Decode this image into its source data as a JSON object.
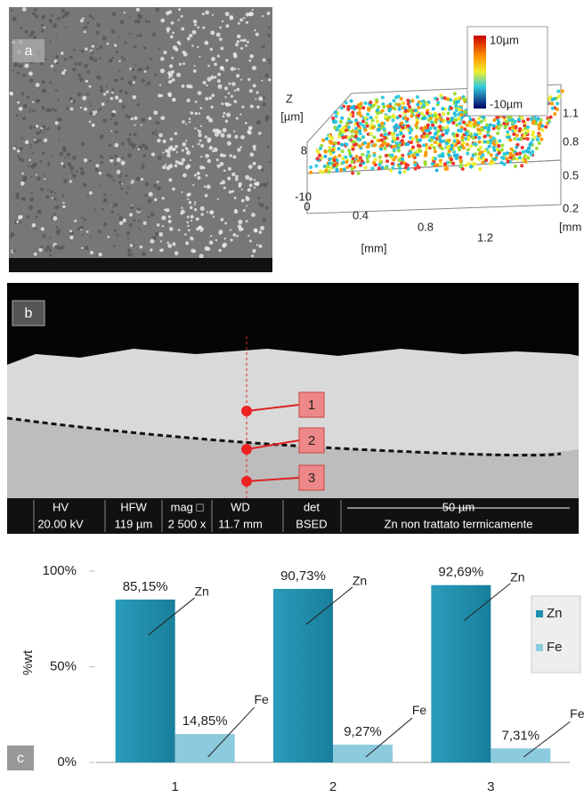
{
  "panel_a": {
    "label": "a",
    "surface": {
      "z_label": "Z",
      "z_unit": "[µm]",
      "z_ticks": [
        "8",
        "-10"
      ],
      "x_ticks": [
        "0",
        "0.4",
        "0.8",
        "1.2"
      ],
      "x_unit": "[mm]",
      "y_ticks": [
        "1.1",
        "0.8",
        "0.5",
        "0.2"
      ],
      "y_unit": "[mm",
      "colorbar": [
        "10µm",
        "-10µm"
      ]
    }
  },
  "panel_b": {
    "label": "b",
    "points": [
      "1",
      "2",
      "3"
    ],
    "info_bar": {
      "headers": [
        "HV",
        "HFW",
        "mag □",
        "WD",
        "det"
      ],
      "values": [
        "20.00 kV",
        "119 µm",
        "2 500 x",
        "11.7 mm",
        "BSED"
      ],
      "scale": "50 µm",
      "sample": "Zn non trattato termicamente"
    }
  },
  "panel_c": {
    "label": "c"
  },
  "chart_data": {
    "type": "bar",
    "y_label": "%wt",
    "categories": [
      "1",
      "2",
      "3"
    ],
    "series": [
      {
        "name": "Zn",
        "color": "#1f8fae",
        "values": [
          85.15,
          90.73,
          92.69
        ],
        "value_labels": [
          "85,15%",
          "90,73%",
          "92,69%"
        ]
      },
      {
        "name": "Fe",
        "color": "#8ccade",
        "values": [
          14.85,
          9.27,
          7.31
        ],
        "value_labels": [
          "14,85%",
          "9,27%",
          "7,31%"
        ]
      }
    ],
    "ylim": [
      0,
      100
    ],
    "yticks": [
      {
        "value": 0,
        "label": "0%"
      },
      {
        "value": 50,
        "label": "50%"
      },
      {
        "value": 100,
        "label": "100%"
      }
    ],
    "legend": "right"
  }
}
